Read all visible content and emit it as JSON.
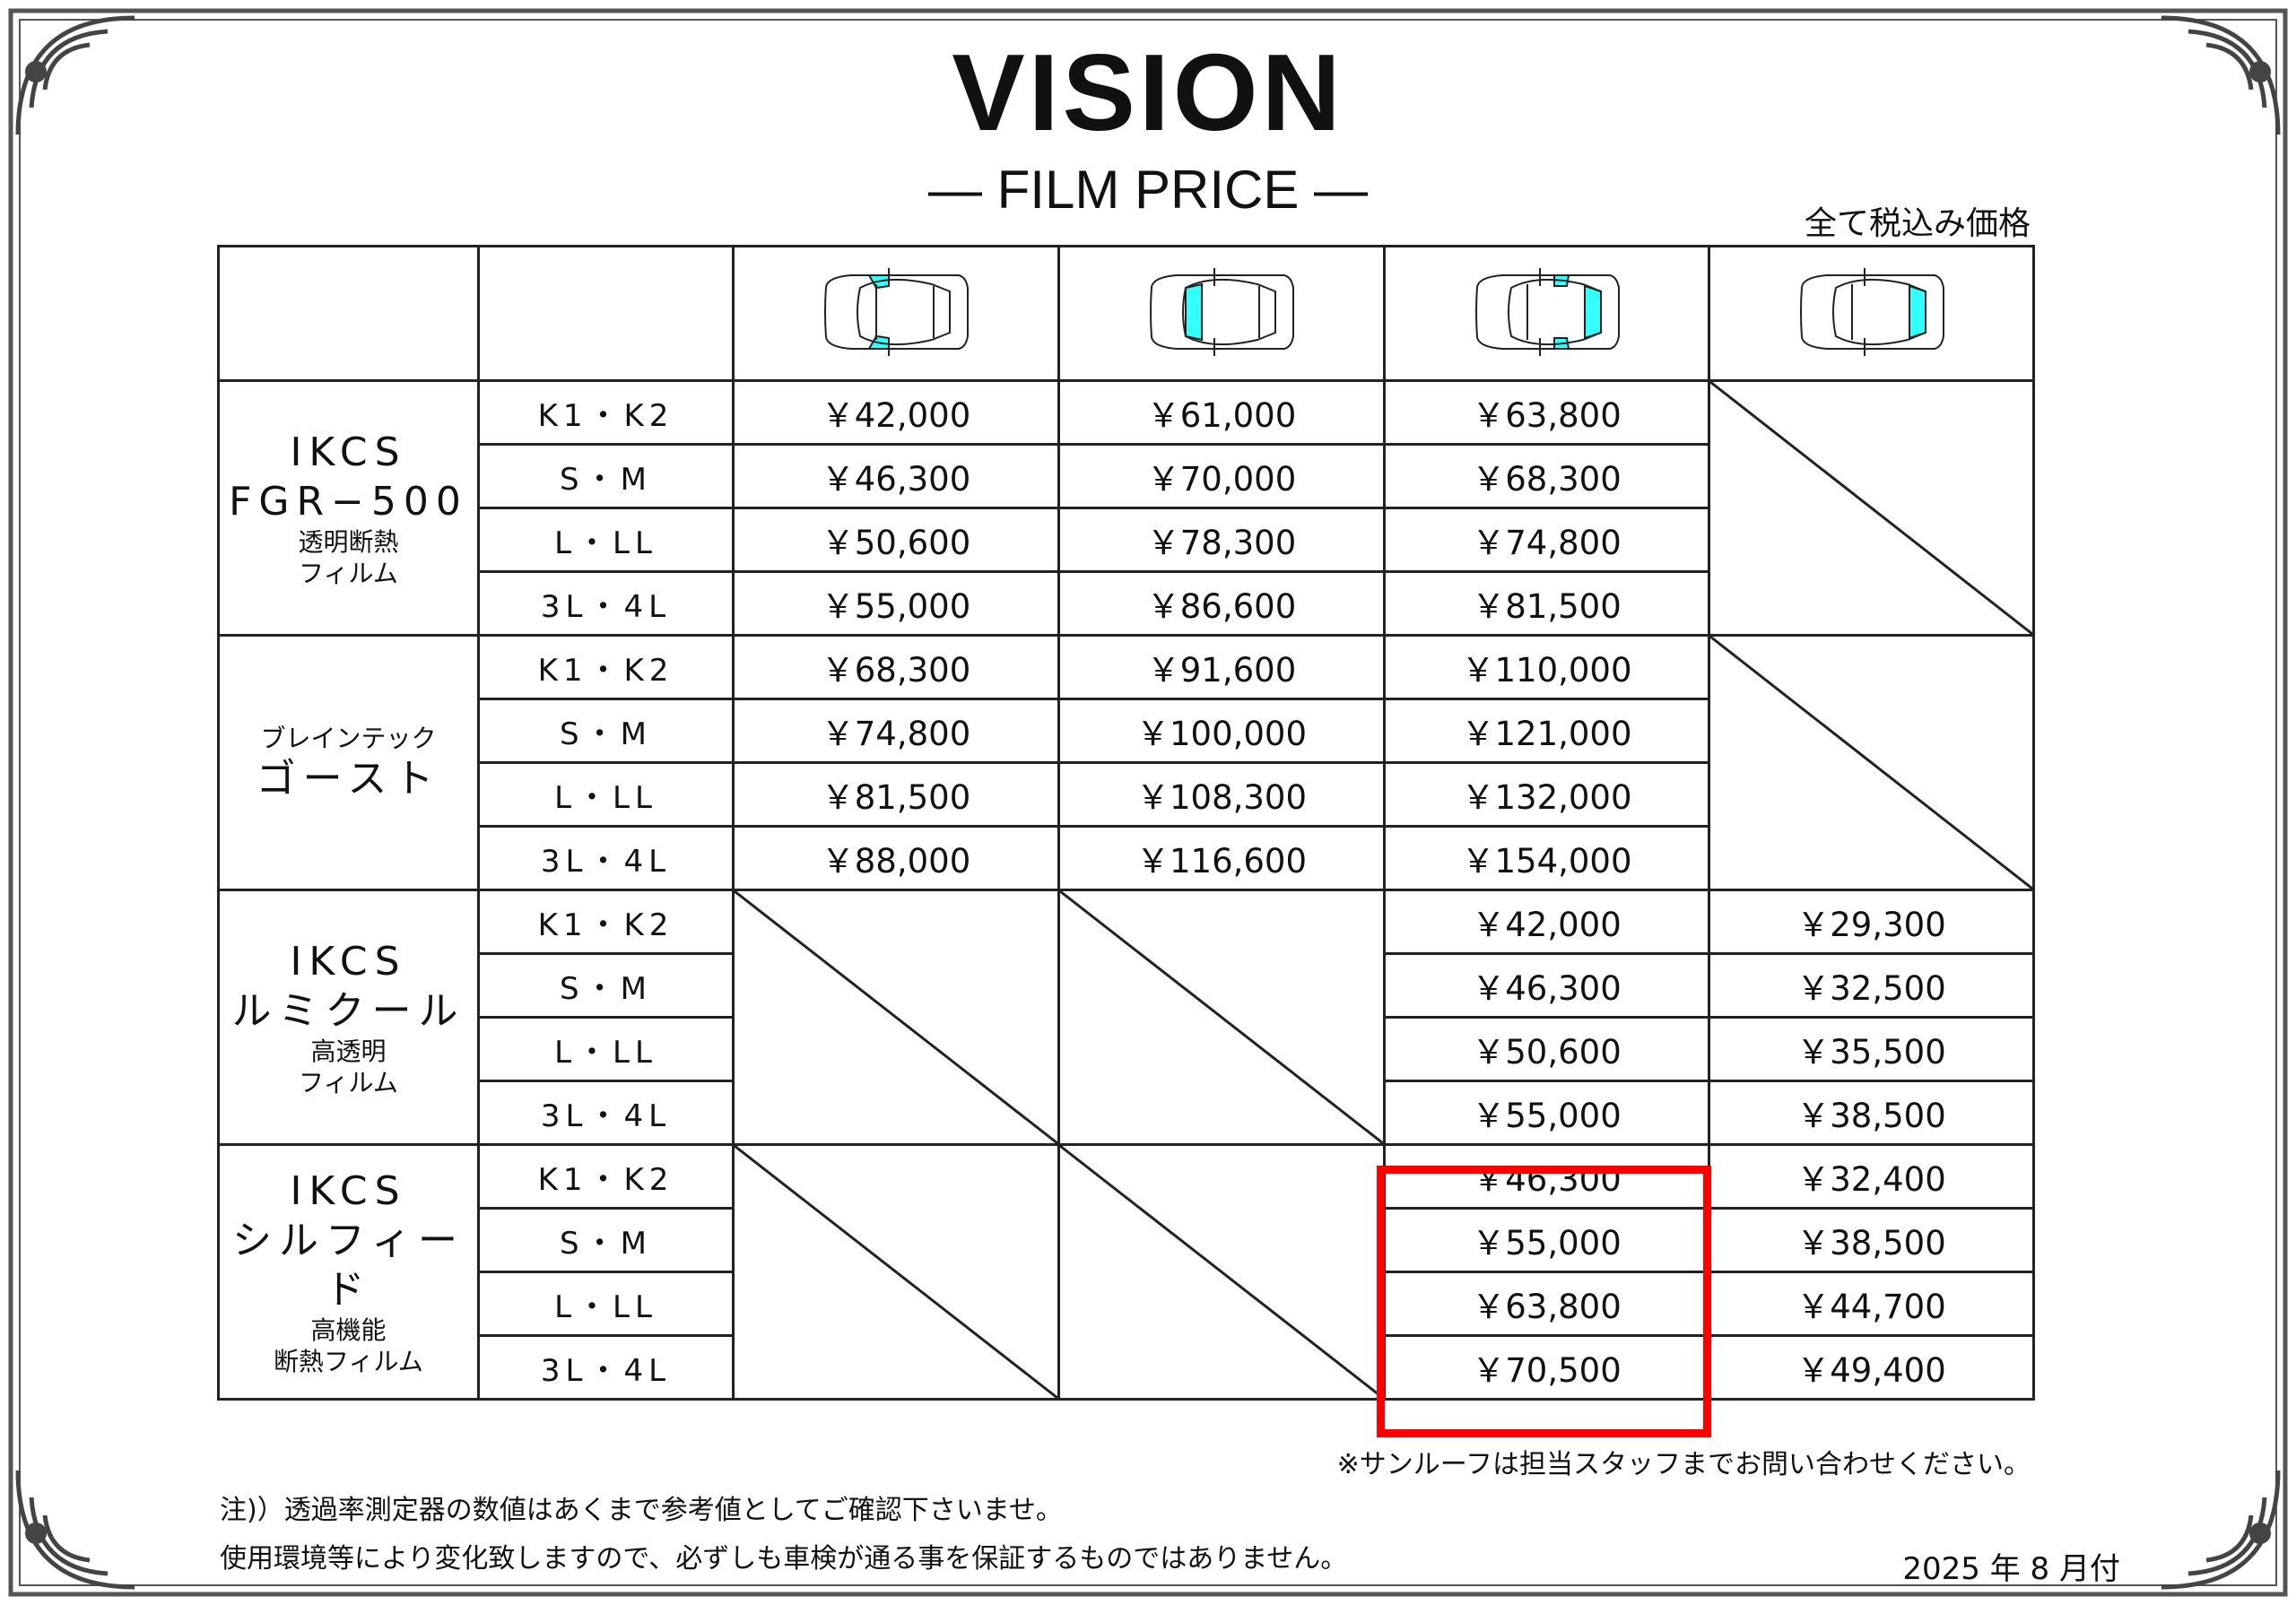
{
  "title": "VISION",
  "subtitle": "— FILM PRICE —",
  "tax_note": "全て税込み価格",
  "columns": [
    {
      "icon": "car-front-side-windows-icon",
      "highlight": "front-sides"
    },
    {
      "icon": "car-windshield-icon",
      "highlight": "windshield"
    },
    {
      "icon": "car-rear-side-and-rear-windows-icon",
      "highlight": "rear-all"
    },
    {
      "icon": "car-rear-window-icon",
      "highlight": "rear-window"
    }
  ],
  "sizes": [
    "K1・K2",
    "S・M",
    "L・LL",
    "3L・4L"
  ],
  "products": [
    {
      "name": [
        "IKCS",
        "FGR−500"
      ],
      "sub": [
        "透明断熱",
        "フィルム"
      ],
      "prices": [
        [
          "￥42,000",
          "￥61,000",
          "￥63,800",
          null
        ],
        [
          "￥46,300",
          "￥70,000",
          "￥68,300",
          null
        ],
        [
          "￥50,600",
          "￥78,300",
          "￥74,800",
          null
        ],
        [
          "￥55,000",
          "￥86,600",
          "￥81,500",
          null
        ]
      ]
    },
    {
      "pre": "ブレインテック",
      "name": [
        "ゴースト"
      ],
      "sub": [],
      "prices": [
        [
          "￥68,300",
          "￥91,600",
          "￥110,000",
          null
        ],
        [
          "￥74,800",
          "￥100,000",
          "￥121,000",
          null
        ],
        [
          "￥81,500",
          "￥108,300",
          "￥132,000",
          null
        ],
        [
          "￥88,000",
          "￥116,600",
          "￥154,000",
          null
        ]
      ]
    },
    {
      "name": [
        "IKCS",
        "ルミクール"
      ],
      "sub": [
        "高透明",
        "フィルム"
      ],
      "prices": [
        [
          null,
          null,
          "￥42,000",
          "￥29,300"
        ],
        [
          null,
          null,
          "￥46,300",
          "￥32,500"
        ],
        [
          null,
          null,
          "￥50,600",
          "￥35,500"
        ],
        [
          null,
          null,
          "￥55,000",
          "￥38,500"
        ]
      ]
    },
    {
      "name": [
        "IKCS",
        "シルフィード"
      ],
      "sub": [
        "高機能",
        "断熱フィルム"
      ],
      "prices": [
        [
          null,
          null,
          "￥46,300",
          "￥32,400"
        ],
        [
          null,
          null,
          "￥55,000",
          "￥38,500"
        ],
        [
          null,
          null,
          "￥63,800",
          "￥44,700"
        ],
        [
          null,
          null,
          "￥70,500",
          "￥49,400"
        ]
      ]
    }
  ],
  "highlight_color": "#ff0000",
  "glass_color": "#33ffff",
  "notes": {
    "sunroof": "※サンルーフは担当スタッフまでお問い合わせください。",
    "line1": "注)）透過率測定器の数値はあくまで参考値としてご確認下さいませ。",
    "line2": "使用環境等により変化致しますので、必ずしも車検が通る事を保証するものではありません。",
    "date": "2025 年 8 月付"
  }
}
